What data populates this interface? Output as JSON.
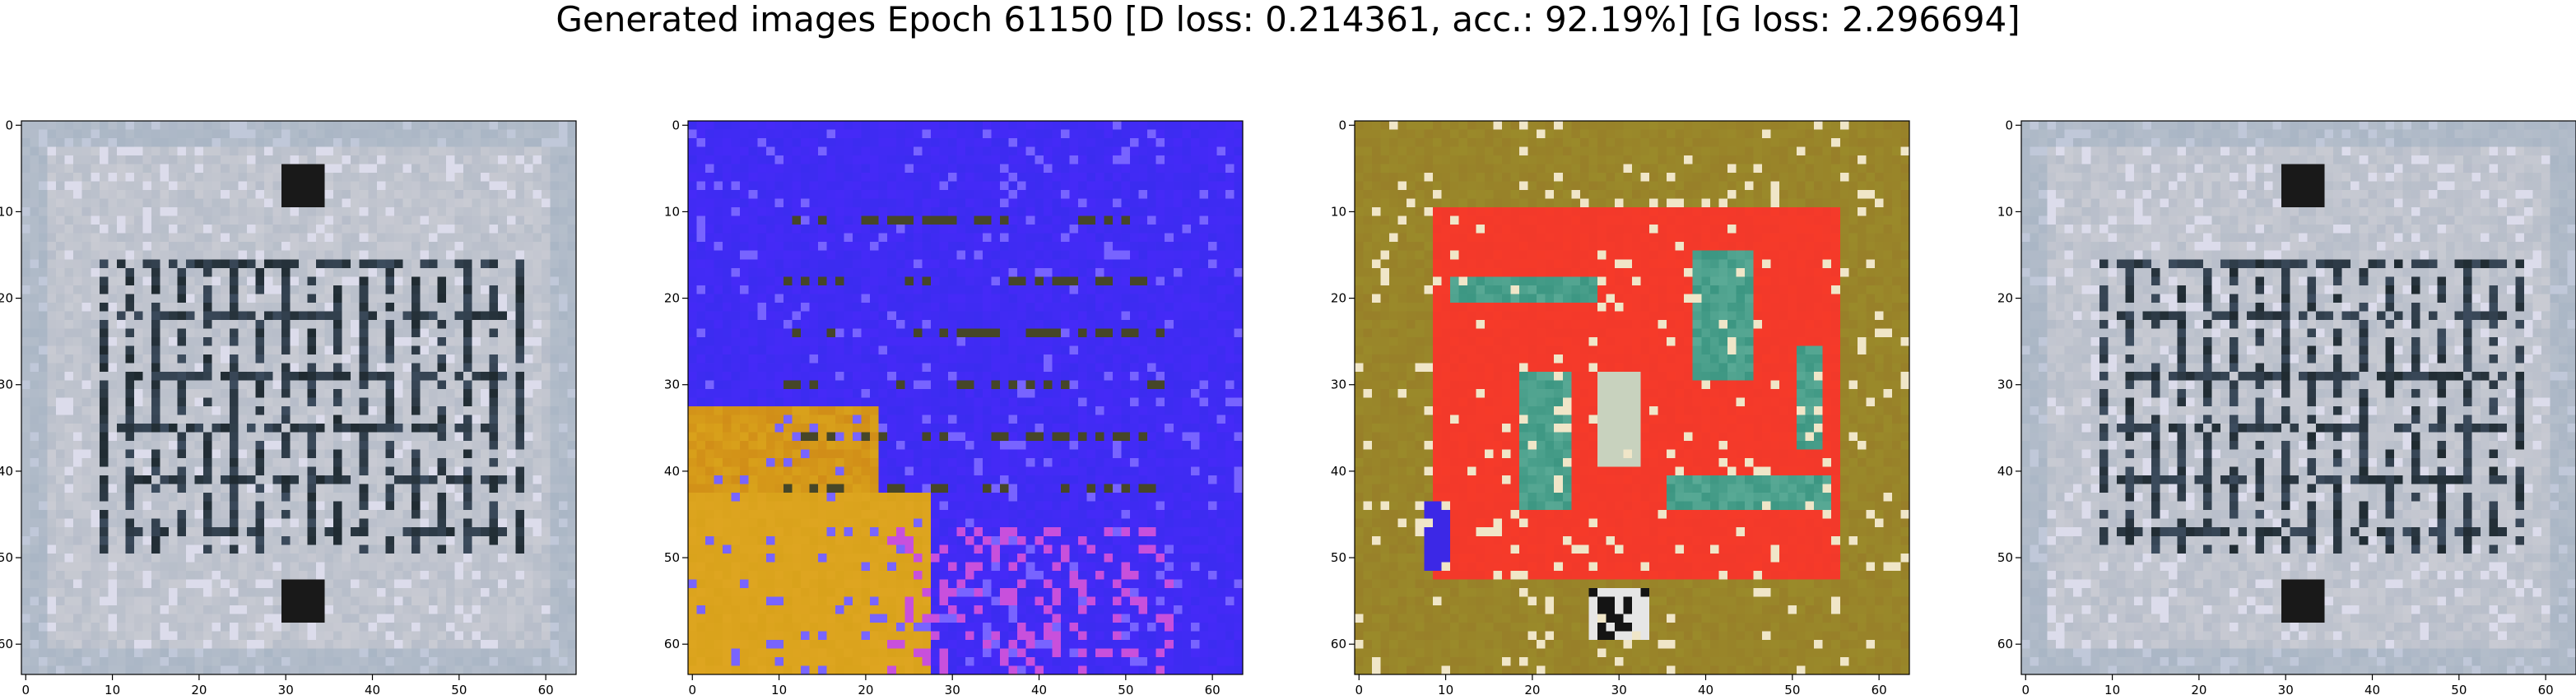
{
  "figure": {
    "title": "Generated images Epoch 61150 [D loss: 0.214361, acc.: 92.19%] [G loss: 2.296694]"
  },
  "axes": {
    "xticks": [
      "0",
      "10",
      "20",
      "30",
      "40",
      "50",
      "60"
    ],
    "yticks": [
      "0",
      "10",
      "20",
      "30",
      "40",
      "50",
      "60"
    ],
    "range": [
      0,
      64
    ]
  },
  "panels": [
    {
      "name": "generated-image-1",
      "theme": "gray-maze",
      "base": "#c9cbd3",
      "accent": "#1f2a30"
    },
    {
      "name": "generated-image-2",
      "theme": "blue-field",
      "base": "#3b2cf0",
      "accent": "#d9a21b"
    },
    {
      "name": "generated-image-3",
      "theme": "red-maze",
      "base": "#f2392a",
      "accent": "#9a8a2a"
    },
    {
      "name": "generated-image-4",
      "theme": "gray-maze",
      "base": "#c9cbd3",
      "accent": "#1f2a30"
    }
  ]
}
